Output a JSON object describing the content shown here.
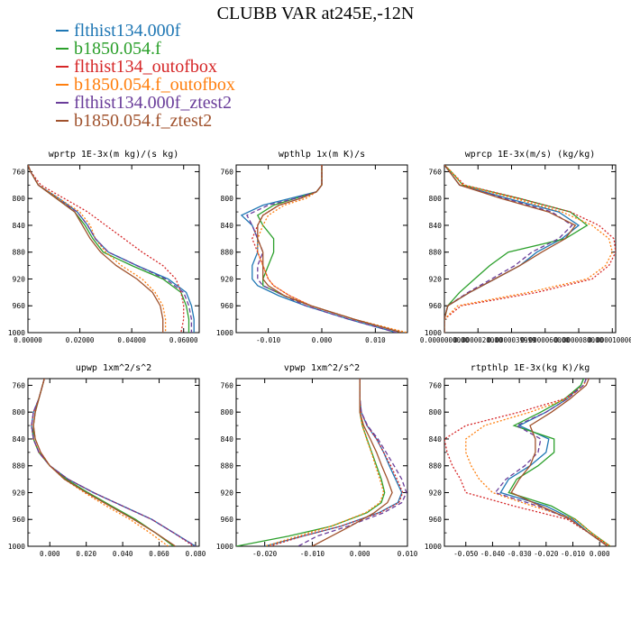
{
  "title": "CLUBB VAR at245E,-12N",
  "legend": [
    {
      "name": "flthist134.000f",
      "color": "#1f77b4",
      "dash": "none"
    },
    {
      "name": "b1850.054.f",
      "color": "#2ca02c",
      "dash": "none"
    },
    {
      "name": "flthist134_outofbox",
      "color": "#d62728",
      "dash": "2,2"
    },
    {
      "name": "b1850.054.f_outofbox",
      "color": "#ff7f0e",
      "dash": "2,2"
    },
    {
      "name": "flthist134.000f_ztest2",
      "color": "#6a3d9a",
      "dash": "5,3"
    },
    {
      "name": "b1850.054.f_ztest2",
      "color": "#a0522d",
      "dash": "none"
    }
  ],
  "chart_data": [
    {
      "type": "line",
      "title": "wprtp  1E-3x(m kg)/(s kg)",
      "xlim": [
        0,
        0.066
      ],
      "ylim": [
        1000,
        750
      ],
      "xticks": [
        0,
        0.02,
        0.04,
        0.06
      ],
      "xtick_labels": [
        "0.00000",
        "0.02000",
        "0.04000",
        "0.06000"
      ],
      "yticks": [
        760,
        800,
        840,
        880,
        920,
        960,
        1000
      ],
      "y": [
        750,
        760,
        780,
        800,
        820,
        840,
        860,
        880,
        900,
        920,
        940,
        960,
        980,
        1000
      ],
      "series": [
        {
          "name": "flthist134.000f",
          "values": [
            0.0,
            0.001,
            0.004,
            0.012,
            0.019,
            0.023,
            0.026,
            0.031,
            0.042,
            0.054,
            0.061,
            0.063,
            0.064,
            0.064
          ]
        },
        {
          "name": "b1850.054.f",
          "values": [
            0.0,
            0.001,
            0.004,
            0.011,
            0.018,
            0.022,
            0.025,
            0.029,
            0.04,
            0.052,
            0.059,
            0.061,
            0.062,
            0.062
          ]
        },
        {
          "name": "flthist134_outofbox",
          "values": [
            0.0,
            0.001,
            0.005,
            0.014,
            0.023,
            0.03,
            0.037,
            0.044,
            0.052,
            0.057,
            0.059,
            0.06,
            0.06,
            0.059
          ]
        },
        {
          "name": "b1850.054.f_outofbox",
          "values": [
            0.0,
            0.001,
            0.004,
            0.012,
            0.02,
            0.024,
            0.026,
            0.03,
            0.036,
            0.044,
            0.049,
            0.052,
            0.053,
            0.053
          ]
        },
        {
          "name": "flthist134.000f_ztest2",
          "values": [
            0.0,
            0.001,
            0.004,
            0.011,
            0.019,
            0.023,
            0.026,
            0.031,
            0.042,
            0.053,
            0.06,
            0.062,
            0.063,
            0.063
          ]
        },
        {
          "name": "b1850.054.f_ztest2",
          "values": [
            0.0,
            0.001,
            0.004,
            0.011,
            0.018,
            0.021,
            0.024,
            0.028,
            0.034,
            0.042,
            0.048,
            0.051,
            0.052,
            0.052
          ]
        }
      ]
    },
    {
      "type": "line",
      "title": "wpthlp  1x(m K)/s",
      "xlim": [
        -0.016,
        0.016
      ],
      "ylim": [
        1000,
        750
      ],
      "xticks": [
        -0.01,
        0,
        0.01
      ],
      "xtick_labels": [
        "-0.010",
        "0.000",
        "0.010"
      ],
      "yticks": [
        760,
        800,
        840,
        880,
        920,
        960,
        1000
      ],
      "y": [
        750,
        760,
        780,
        790,
        800,
        810,
        825,
        840,
        860,
        880,
        900,
        920,
        930,
        945,
        960,
        980,
        1000
      ],
      "series": [
        {
          "name": "flthist134.000f",
          "values": [
            0.0,
            0.0,
            0.0,
            -0.001,
            -0.006,
            -0.011,
            -0.015,
            -0.013,
            -0.012,
            -0.012,
            -0.013,
            -0.013,
            -0.012,
            -0.008,
            -0.003,
            0.005,
            0.014
          ]
        },
        {
          "name": "b1850.054.f",
          "values": [
            0.0,
            0.0,
            0.0,
            -0.001,
            -0.005,
            -0.009,
            -0.012,
            -0.011,
            -0.009,
            -0.009,
            -0.01,
            -0.011,
            -0.011,
            -0.007,
            -0.002,
            0.006,
            0.015
          ]
        },
        {
          "name": "flthist134_outofbox",
          "values": [
            0.0,
            0.0,
            0.0,
            -0.001,
            -0.004,
            -0.008,
            -0.011,
            -0.012,
            -0.013,
            -0.012,
            -0.011,
            -0.01,
            -0.009,
            -0.006,
            -0.002,
            0.006,
            0.015
          ]
        },
        {
          "name": "b1850.054.f_outofbox",
          "values": [
            0.0,
            0.0,
            0.0,
            -0.001,
            -0.003,
            -0.007,
            -0.01,
            -0.011,
            -0.012,
            -0.012,
            -0.011,
            -0.01,
            -0.009,
            -0.006,
            -0.002,
            0.006,
            0.016
          ]
        },
        {
          "name": "flthist134.000f_ztest2",
          "values": [
            0.0,
            0.0,
            0.0,
            -0.001,
            -0.005,
            -0.01,
            -0.014,
            -0.013,
            -0.012,
            -0.011,
            -0.012,
            -0.012,
            -0.011,
            -0.007,
            -0.003,
            0.005,
            0.014
          ]
        },
        {
          "name": "b1850.054.f_ztest2",
          "values": [
            0.0,
            0.0,
            0.0,
            -0.001,
            -0.004,
            -0.008,
            -0.011,
            -0.012,
            -0.012,
            -0.011,
            -0.011,
            -0.011,
            -0.01,
            -0.007,
            -0.002,
            0.006,
            0.015
          ]
        }
      ]
    },
    {
      "type": "line",
      "title": "wprcp  1E-3x(m/s) (kg/kg)",
      "xlim": [
        0,
        1.02e-05
      ],
      "ylim": [
        1000,
        750
      ],
      "xticks": [
        0,
        2e-06,
        4e-06,
        6e-06,
        8e-06,
        1e-05
      ],
      "xtick_labels": [
        "0.0000000000",
        "0.0000020000",
        "0.0000039999",
        "0.0000060000",
        "0.0000080000",
        "0.0000100004"
      ],
      "yticks": [
        760,
        800,
        840,
        880,
        920,
        960,
        1000
      ],
      "y": [
        750,
        760,
        780,
        800,
        820,
        840,
        860,
        880,
        900,
        920,
        940,
        960,
        980,
        1000
      ],
      "series": [
        {
          "name": "flthist134.000f",
          "values": [
            0.0,
            3e-07,
            9e-07,
            3.8e-06,
            6.8e-06,
            8e-06,
            7e-06,
            5.5e-06,
            4.5e-06,
            3e-06,
            1.5e-06,
            2e-07,
            0.0,
            0.0
          ]
        },
        {
          "name": "b1850.054.f",
          "values": [
            0.0,
            4e-07,
            1.1e-06,
            4.5e-06,
            7.5e-06,
            8.5e-06,
            7.2e-06,
            3.8e-06,
            2.7e-06,
            1.8e-06,
            9e-07,
            2e-07,
            0.0,
            0.0
          ]
        },
        {
          "name": "flthist134_outofbox",
          "values": [
            0.0,
            4e-07,
            1.2e-06,
            4.5e-06,
            7.5e-06,
            9.2e-06,
            1.01e-05,
            1.02e-05,
            9.8e-06,
            8.8e-06,
            5.5e-06,
            1e-06,
            0.0,
            0.0
          ]
        },
        {
          "name": "b1850.054.f_outofbox",
          "values": [
            0.0,
            4e-07,
            1.1e-06,
            4.2e-06,
            7e-06,
            8.8e-06,
            9.8e-06,
            1e-05,
            9.6e-06,
            8.5e-06,
            5e-06,
            8e-07,
            0.0,
            0.0
          ]
        },
        {
          "name": "flthist134.000f_ztest2",
          "values": [
            0.0,
            3e-07,
            9e-07,
            3.6e-06,
            6.4e-06,
            7.6e-06,
            6.8e-06,
            5.2e-06,
            4.2e-06,
            2.8e-06,
            1.4e-06,
            2e-07,
            0.0,
            0.0
          ]
        },
        {
          "name": "b1850.054.f_ztest2",
          "values": [
            0.0,
            3e-07,
            9e-07,
            3.4e-06,
            6.2e-06,
            7.8e-06,
            7.2e-06,
            5.8e-06,
            4.5e-06,
            3e-06,
            1.5e-06,
            2e-07,
            0.0,
            0.0
          ]
        }
      ]
    },
    {
      "type": "line",
      "title": "upwp  1xm^2/s^2",
      "xlim": [
        -0.012,
        0.082
      ],
      "ylim": [
        1000,
        750
      ],
      "xticks": [
        0,
        0.02,
        0.04,
        0.06,
        0.08
      ],
      "xtick_labels": [
        "0.000",
        "0.020",
        "0.040",
        "0.060",
        "0.080"
      ],
      "yticks": [
        760,
        800,
        840,
        880,
        920,
        960,
        1000
      ],
      "y": [
        750,
        760,
        780,
        800,
        820,
        840,
        860,
        880,
        900,
        920,
        940,
        960,
        980,
        1000
      ],
      "series": [
        {
          "name": "flthist134.000f",
          "values": [
            -0.003,
            -0.004,
            -0.006,
            -0.009,
            -0.01,
            -0.009,
            -0.006,
            0.0,
            0.01,
            0.024,
            0.04,
            0.056,
            0.068,
            0.08
          ]
        },
        {
          "name": "b1850.054.f",
          "values": [
            -0.003,
            -0.004,
            -0.006,
            -0.008,
            -0.009,
            -0.009,
            -0.006,
            0.0,
            0.009,
            0.021,
            0.034,
            0.047,
            0.058,
            0.068
          ]
        },
        {
          "name": "flthist134_outofbox",
          "values": [
            -0.003,
            -0.004,
            -0.006,
            -0.009,
            -0.01,
            -0.009,
            -0.006,
            0.0,
            0.01,
            0.024,
            0.04,
            0.056,
            0.068,
            0.079
          ]
        },
        {
          "name": "b1850.054.f_outofbox",
          "values": [
            -0.003,
            -0.004,
            -0.006,
            -0.008,
            -0.009,
            -0.008,
            -0.005,
            0.0,
            0.008,
            0.019,
            0.031,
            0.044,
            0.055,
            0.065
          ]
        },
        {
          "name": "flthist134.000f_ztest2",
          "values": [
            -0.003,
            -0.004,
            -0.006,
            -0.009,
            -0.01,
            -0.009,
            -0.006,
            0.0,
            0.01,
            0.024,
            0.04,
            0.056,
            0.068,
            0.08
          ]
        },
        {
          "name": "b1850.054.f_ztest2",
          "values": [
            -0.003,
            -0.004,
            -0.006,
            -0.008,
            -0.009,
            -0.008,
            -0.005,
            0.0,
            0.008,
            0.02,
            0.033,
            0.046,
            0.058,
            0.069
          ]
        }
      ]
    },
    {
      "type": "line",
      "title": "vpwp  1xm^2/s^2",
      "xlim": [
        -0.026,
        0.01
      ],
      "ylim": [
        1000,
        750
      ],
      "xticks": [
        -0.02,
        -0.01,
        0,
        0.01
      ],
      "xtick_labels": [
        "-0.020",
        "-0.010",
        "0.000",
        "0.010"
      ],
      "yticks": [
        760,
        800,
        840,
        880,
        920,
        960,
        1000
      ],
      "y": [
        750,
        760,
        780,
        800,
        820,
        840,
        860,
        880,
        900,
        920,
        935,
        950,
        970,
        985,
        1000
      ],
      "series": [
        {
          "name": "flthist134.000f",
          "values": [
            0.0,
            0.0,
            0.0,
            0.0003,
            0.0015,
            0.0035,
            0.005,
            0.0062,
            0.0075,
            0.0088,
            0.008,
            0.004,
            -0.004,
            -0.012,
            -0.02
          ]
        },
        {
          "name": "b1850.054.f",
          "values": [
            0.0,
            0.0,
            0.0,
            0.0,
            0.0005,
            0.0015,
            0.0025,
            0.0035,
            0.0045,
            0.0052,
            0.0045,
            0.0015,
            -0.006,
            -0.015,
            -0.026
          ]
        },
        {
          "name": "flthist134_outofbox",
          "values": [
            0.0,
            0.0,
            0.0,
            0.0003,
            0.0015,
            0.0035,
            0.005,
            0.0065,
            0.0078,
            0.009,
            0.0082,
            0.0042,
            -0.004,
            -0.012,
            -0.019
          ]
        },
        {
          "name": "b1850.054.f_outofbox",
          "values": [
            0.0,
            0.0,
            0.0,
            0.0,
            0.0005,
            0.0014,
            0.0024,
            0.0033,
            0.0042,
            0.005,
            0.0042,
            0.0012,
            -0.006,
            -0.013,
            -0.02
          ]
        },
        {
          "name": "flthist134.000f_ztest2",
          "values": [
            0.0,
            0.0,
            0.0,
            0.0003,
            0.0016,
            0.0038,
            0.0055,
            0.0072,
            0.0088,
            0.0098,
            0.0088,
            0.005,
            -0.0025,
            -0.009,
            -0.013
          ]
        },
        {
          "name": "b1850.054.f_ztest2",
          "values": [
            0.0,
            0.0,
            0.0,
            0.0,
            0.0008,
            0.0022,
            0.0035,
            0.0046,
            0.0058,
            0.0068,
            0.0058,
            0.003,
            -0.002,
            -0.006,
            -0.01
          ]
        }
      ]
    },
    {
      "type": "line",
      "title": "rtpthlp  1E-3x(kg K)/kg",
      "xlim": [
        -0.058,
        0.006
      ],
      "ylim": [
        1000,
        750
      ],
      "xticks": [
        -0.05,
        -0.04,
        -0.03,
        -0.02,
        -0.01,
        0
      ],
      "xtick_labels": [
        "-0.050",
        "-0.040",
        "-0.030",
        "-0.020",
        "-0.010",
        "0.000"
      ],
      "yticks": [
        760,
        800,
        840,
        880,
        920,
        960,
        1000
      ],
      "y": [
        750,
        760,
        780,
        800,
        820,
        840,
        860,
        880,
        900,
        920,
        940,
        960,
        980,
        1000
      ],
      "series": [
        {
          "name": "flthist134.000f",
          "values": [
            -0.006,
            -0.007,
            -0.012,
            -0.02,
            -0.03,
            -0.019,
            -0.02,
            -0.026,
            -0.034,
            -0.037,
            -0.02,
            -0.01,
            -0.004,
            0.003
          ]
        },
        {
          "name": "b1850.054.f",
          "values": [
            -0.006,
            -0.007,
            -0.013,
            -0.022,
            -0.032,
            -0.017,
            -0.017,
            -0.023,
            -0.031,
            -0.034,
            -0.018,
            -0.009,
            -0.003,
            0.004
          ]
        },
        {
          "name": "flthist134_outofbox",
          "values": [
            -0.005,
            -0.006,
            -0.013,
            -0.03,
            -0.05,
            -0.058,
            -0.057,
            -0.055,
            -0.052,
            -0.05,
            -0.032,
            -0.012,
            -0.004,
            0.004
          ]
        },
        {
          "name": "b1850.054.f_outofbox",
          "values": [
            -0.005,
            -0.006,
            -0.012,
            -0.026,
            -0.043,
            -0.05,
            -0.05,
            -0.048,
            -0.045,
            -0.04,
            -0.025,
            -0.009,
            -0.003,
            0.004
          ]
        },
        {
          "name": "flthist134.000f_ztest2",
          "values": [
            -0.005,
            -0.006,
            -0.012,
            -0.02,
            -0.031,
            -0.022,
            -0.023,
            -0.028,
            -0.035,
            -0.039,
            -0.023,
            -0.011,
            -0.004,
            0.003
          ]
        },
        {
          "name": "b1850.054.f_ztest2",
          "values": [
            -0.004,
            -0.005,
            -0.011,
            -0.018,
            -0.026,
            -0.024,
            -0.024,
            -0.026,
            -0.03,
            -0.033,
            -0.022,
            -0.011,
            -0.004,
            0.003
          ]
        }
      ]
    }
  ]
}
